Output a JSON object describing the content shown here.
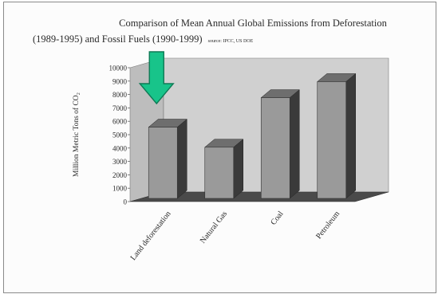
{
  "title_line1": "Comparison of Mean Annual Global Emissions from Deforestation",
  "title_line2": "(1989-1995) and Fossil Fuels (1990-1999)",
  "source": "source: IPCC, US DOE",
  "colors": {
    "bar_front": "#9a9a9a",
    "bar_top": "#6e6e6e",
    "bar_side": "#3a3a3a",
    "back_wall": "#d0d0d0",
    "floor": "#4a4a4a",
    "arrow": "#18c48a"
  },
  "icons": {
    "highlight": "down-arrow-icon"
  },
  "chart_data": {
    "type": "bar",
    "title": "Comparison of Mean Annual Global Emissions from Deforestation (1989-1995) and Fossil Fuels (1990-1999)",
    "ylabel": "Million Metric Tons of CO₂",
    "categories": [
      "Land deforestation",
      "Natural Gas",
      "Coal",
      "Petroleum"
    ],
    "values": [
      5800,
      4300,
      8000,
      9200
    ],
    "ylim": [
      0,
      10000
    ],
    "yticks": [
      "0",
      "1000",
      "2000",
      "3000",
      "4000",
      "5000",
      "6000",
      "7000",
      "8000",
      "9000",
      "10000"
    ],
    "grid": false,
    "legend": "none",
    "highlighted_category": "Land deforestation"
  }
}
